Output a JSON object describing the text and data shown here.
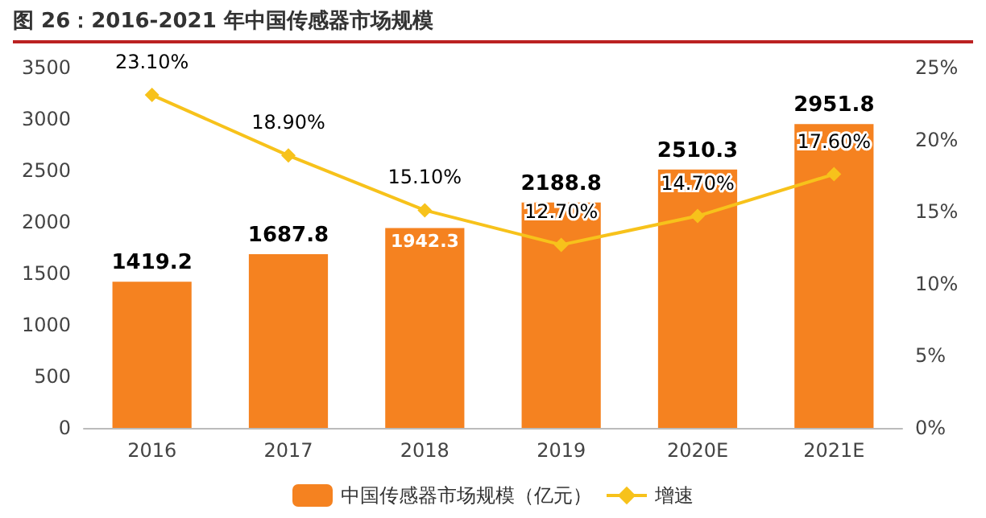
{
  "chart_data": {
    "type": "bar",
    "title": "图 26：2016-2021 年中国传感器市场规模",
    "categories": [
      "2016",
      "2017",
      "2018",
      "2019",
      "2020E",
      "2021E"
    ],
    "series": [
      {
        "name": "中国传感器市场规模（亿元）",
        "color": "#f58220",
        "values": [
          1419.2,
          1687.8,
          1942.3,
          2188.8,
          2510.3,
          2951.8
        ],
        "value_labels": [
          "1419.2",
          "1687.8",
          "1942.3",
          "2188.8",
          "2510.3",
          "2951.8"
        ]
      },
      {
        "name": "增速",
        "type": "line",
        "axis": "y2",
        "color": "#f7c21b",
        "marker": "diamond",
        "values": [
          23.1,
          18.9,
          15.1,
          12.7,
          14.7,
          17.6
        ],
        "value_labels": [
          "23.10%",
          "18.90%",
          "15.10%",
          "12.70%",
          "14.70%",
          "17.60%"
        ]
      }
    ],
    "ylim": [
      0,
      3500
    ],
    "yticks": [
      0,
      500,
      1000,
      1500,
      2000,
      2500,
      3000,
      3500
    ],
    "y2lim": [
      0,
      25
    ],
    "y2ticks": [
      {
        "value": 0,
        "label": "0%"
      },
      {
        "value": 5,
        "label": "5%"
      },
      {
        "value": 10,
        "label": "10%"
      },
      {
        "value": 15,
        "label": "15%"
      },
      {
        "value": 20,
        "label": "20%"
      },
      {
        "value": 25,
        "label": "25%"
      }
    ],
    "grid": false,
    "legend": "bottom"
  }
}
